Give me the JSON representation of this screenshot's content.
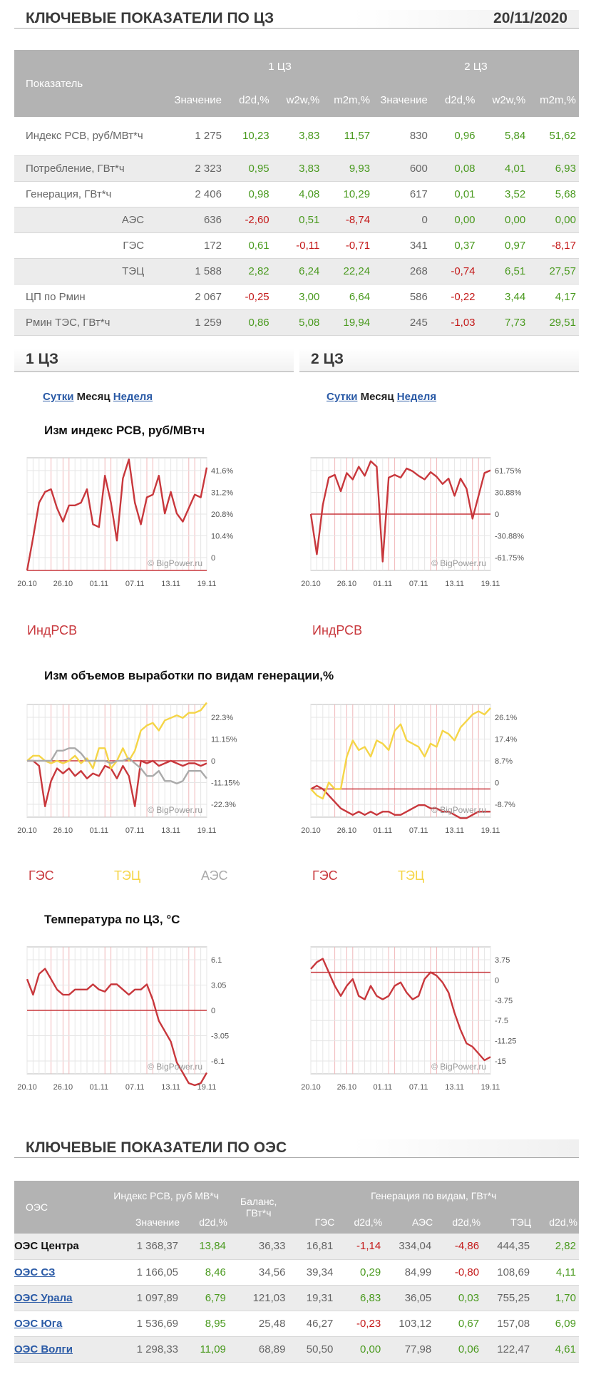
{
  "header": {
    "title": "КЛЮЧЕВЫЕ ПОКАЗАТЕЛИ ПО ЦЗ",
    "date": "20/11/2020"
  },
  "kpi": {
    "col_indicator": "Показатель",
    "group1": "1 ЦЗ",
    "group2": "2 ЦЗ",
    "sub": [
      "Значение",
      "d2d,%",
      "w2w,%",
      "m2m,%",
      "Значение",
      "d2d,%",
      "w2w,%",
      "m2m,%"
    ],
    "rows": [
      {
        "label": "Индекс РСВ, руб/МВт*ч",
        "sub": false,
        "v": [
          "1 275",
          "10,23",
          "3,83",
          "11,57",
          "830",
          "0,96",
          "5,84",
          "51,62"
        ]
      },
      {
        "label": "Потребление, ГВт*ч",
        "sub": false,
        "v": [
          "2 323",
          "0,95",
          "3,83",
          "9,93",
          "600",
          "0,08",
          "4,01",
          "6,93"
        ]
      },
      {
        "label": "Генерация, ГВт*ч",
        "sub": false,
        "v": [
          "2 406",
          "0,98",
          "4,08",
          "10,29",
          "617",
          "0,01",
          "3,52",
          "5,68"
        ]
      },
      {
        "label": "АЭС",
        "sub": true,
        "v": [
          "636",
          "-2,60",
          "0,51",
          "-8,74",
          "0",
          "0,00",
          "0,00",
          "0,00"
        ]
      },
      {
        "label": "ГЭС",
        "sub": true,
        "v": [
          "172",
          "0,61",
          "-0,11",
          "-0,71",
          "341",
          "0,37",
          "0,97",
          "-8,17"
        ]
      },
      {
        "label": "ТЭЦ",
        "sub": true,
        "v": [
          "1 588",
          "2,82",
          "6,24",
          "22,24",
          "268",
          "-0,74",
          "6,51",
          "27,57"
        ]
      },
      {
        "label": "ЦП по Рмин",
        "sub": false,
        "v": [
          "2 067",
          "-0,25",
          "3,00",
          "6,64",
          "586",
          "-0,22",
          "3,44",
          "4,17"
        ]
      },
      {
        "label": "Рмин ТЭС, ГВт*ч",
        "sub": false,
        "v": [
          "1 259",
          "0,86",
          "5,08",
          "19,94",
          "245",
          "-1,03",
          "7,73",
          "29,51"
        ]
      }
    ]
  },
  "zones": {
    "z1": {
      "title": "1 ЦЗ"
    },
    "z2": {
      "title": "2 ЦЗ"
    },
    "periods": {
      "day": "Сутки",
      "month": "Месяц",
      "week": "Неделя"
    }
  },
  "chart_titles": {
    "rsv": "Изм индекс РСВ, руб/МВтч",
    "gen": "Изм объемов выработки по видам генерации,%",
    "temp": "Температура по ЦЗ, °C"
  },
  "watermark": "© BigPower.ru",
  "x_ticks": [
    "20.10",
    "26.10",
    "01.11",
    "07.11",
    "13.11",
    "19.11"
  ],
  "legend": {
    "rsv": "ИндРСВ",
    "ges": "ГЭС",
    "tec": "ТЭЦ",
    "aes": "АЭС"
  },
  "colors": {
    "red": "#c8373c",
    "yellow": "#f5d547",
    "gray": "#aaaaaa",
    "grid": "#e6e6e6",
    "pos": "#4a9a1f",
    "neg": "#c41a1a",
    "header_bg": "#b3b3b3",
    "link": "#2a5aa6"
  },
  "chart_data": [
    {
      "type": "line",
      "title": "Изм индекс РСВ, руб/МВтч",
      "zone": "1 ЦЗ",
      "yticks": [
        "41.6%",
        "31.2%",
        "20.8%",
        "10.4%",
        "0"
      ],
      "ylim": [
        0,
        41.6
      ],
      "series": [
        {
          "name": "ИндРСВ",
          "color": "#c8373c",
          "values": [
            0,
            12,
            25,
            29,
            30,
            23,
            18,
            24,
            24,
            25,
            30,
            17,
            16,
            35,
            25,
            11,
            34,
            41,
            25,
            17,
            27,
            28,
            35,
            21,
            29,
            21,
            18,
            23,
            28,
            27,
            38
          ]
        }
      ]
    },
    {
      "type": "line",
      "title": "Изм индекс РСВ, руб/МВтч",
      "zone": "2 ЦЗ",
      "yticks": [
        "61.75%",
        "30.88%",
        "0",
        "-30.88%",
        "-61.75%"
      ],
      "ylim": [
        -61.75,
        61.75
      ],
      "series": [
        {
          "name": "ИндРСВ",
          "color": "#c8373c",
          "values": [
            0,
            -44,
            10,
            40,
            43,
            25,
            45,
            38,
            52,
            42,
            58,
            52,
            -52,
            40,
            43,
            40,
            50,
            47,
            42,
            38,
            46,
            41,
            33,
            39,
            20,
            39,
            28,
            -5,
            20,
            45,
            48
          ]
        }
      ]
    },
    {
      "type": "line",
      "title": "Изм объемов выработки по видам генерации,%",
      "zone": "1 ЦЗ",
      "yticks": [
        "22.3%",
        "11.15%",
        "0",
        "-11.15%",
        "-22.3%"
      ],
      "ylim": [
        -22.3,
        22.3
      ],
      "series": [
        {
          "name": "ГЭС",
          "color": "#c8373c",
          "values": [
            0,
            0,
            -2,
            -18,
            -8,
            -3,
            -5,
            -3,
            -6,
            -4,
            -7,
            -5,
            -6,
            -2,
            -3,
            -7,
            -2,
            -6,
            -18,
            0,
            -1,
            0,
            -2,
            -1,
            0,
            -1,
            -2,
            -1,
            -1,
            -2,
            -1
          ]
        },
        {
          "name": "ТЭЦ",
          "color": "#f5d547",
          "values": [
            0,
            2,
            2,
            0,
            -1,
            0,
            -1,
            0,
            2,
            -1,
            1,
            -3,
            5,
            5,
            -3,
            0,
            5,
            0,
            4,
            12,
            14,
            15,
            12,
            16,
            17,
            18,
            17,
            19,
            19,
            20,
            23
          ]
        },
        {
          "name": "АЭС",
          "color": "#aaaaaa",
          "values": [
            0,
            0,
            0,
            0,
            0,
            4,
            4,
            5,
            5,
            3,
            0,
            0,
            0,
            0,
            -1,
            0,
            0,
            1,
            -1,
            -3,
            -6,
            -6,
            -4,
            -8,
            -8,
            -9,
            -8,
            -4,
            -4,
            -4,
            -7
          ]
        }
      ]
    },
    {
      "type": "line",
      "title": "Изм объемов выработки по видам генерации,%",
      "zone": "2 ЦЗ",
      "yticks": [
        "26.1%",
        "17.4%",
        "8.7%",
        "0",
        "-8.7%"
      ],
      "ylim": [
        -8.7,
        26.1
      ],
      "series": [
        {
          "name": "ГЭС",
          "color": "#c8373c",
          "values": [
            0,
            1,
            0,
            -2,
            -4,
            -6,
            -7,
            -8,
            -7,
            -8,
            -7,
            -8,
            -7,
            -7,
            -8,
            -8,
            -7,
            -6,
            -5,
            -5,
            -6,
            -6,
            -7,
            -7,
            -8,
            -9,
            -9,
            -8,
            -7,
            -7,
            -7
          ]
        },
        {
          "name": "ТЭЦ",
          "color": "#f5d547",
          "values": [
            0,
            -2,
            -3,
            2,
            0,
            0,
            10,
            15,
            12,
            13,
            10,
            15,
            14,
            12,
            18,
            20,
            15,
            14,
            13,
            10,
            14,
            13,
            18,
            17,
            15,
            19,
            21,
            23,
            24,
            23,
            25
          ]
        }
      ]
    },
    {
      "type": "line",
      "title": "Температура по ЦЗ, °C",
      "zone": "1 ЦЗ",
      "yticks": [
        "6.1",
        "3.05",
        "0",
        "-3.05",
        "-6.1"
      ],
      "ylim": [
        -6.1,
        6.1
      ],
      "series": [
        {
          "name": "",
          "color": "#c8373c",
          "values": [
            3,
            1.5,
            3.5,
            4,
            3,
            2,
            1.5,
            1.5,
            2,
            2,
            2,
            2.5,
            2,
            1.8,
            2.5,
            2.5,
            2,
            1.5,
            2,
            2,
            2.5,
            1,
            -1,
            -2,
            -3,
            -5,
            -6,
            -7,
            -7.2,
            -7,
            -6
          ]
        }
      ]
    },
    {
      "type": "line",
      "title": "Температура по ЦЗ, °C",
      "zone": "2 ЦЗ",
      "yticks": [
        "3.75",
        "0",
        "-3.75",
        "-7.5",
        "-11.25",
        "-15"
      ],
      "ylim": [
        -15,
        3.75
      ],
      "series": [
        {
          "name": "",
          "color": "#c8373c",
          "values": [
            0.5,
            1.5,
            2,
            0,
            -2,
            -3.5,
            -2,
            -1,
            -3.5,
            -4,
            -2,
            -3.5,
            -4,
            -3.5,
            -2,
            -1.5,
            -3,
            -4,
            -3.5,
            -1,
            0,
            -0.5,
            -1.5,
            -3,
            -6,
            -8.5,
            -10.5,
            -11,
            -12,
            -13,
            -12.5
          ]
        }
      ]
    }
  ],
  "oes": {
    "h_oes": "ОЭС",
    "h_index": "Индекс РСВ, руб МВ*ч",
    "h_balance": "Баланс, ГВт*ч",
    "h_gen": "Генерация по видам, ГВт*ч",
    "sub": [
      "Значение",
      "d2d,%",
      "ГЭС",
      "d2d,%",
      "АЭС",
      "d2d,%",
      "ТЭЦ",
      "d2d,%"
    ],
    "title": "КЛЮЧЕВЫЕ ПОКАЗАТЕЛИ ПО ОЭС",
    "rows": [
      {
        "name": "ОЭС Центра",
        "link": false,
        "v": [
          "1 368,37",
          "13,84",
          "36,33",
          "16,81",
          "-1,14",
          "334,04",
          "-4,86",
          "444,35",
          "2,82"
        ]
      },
      {
        "name": "ОЭС СЗ",
        "link": true,
        "v": [
          "1 166,05",
          "8,46",
          "34,56",
          "39,34",
          "0,29",
          "84,99",
          "-0,80",
          "108,69",
          "4,11"
        ]
      },
      {
        "name": "ОЭС Урала",
        "link": true,
        "v": [
          "1 097,89",
          "6,79",
          "121,03",
          "19,31",
          "6,83",
          "36,05",
          "0,03",
          "755,25",
          "1,70"
        ]
      },
      {
        "name": "ОЭС Юга",
        "link": true,
        "v": [
          "1 536,69",
          "8,95",
          "25,48",
          "46,27",
          "-0,23",
          "103,12",
          "0,67",
          "157,08",
          "6,09"
        ]
      },
      {
        "name": "ОЭС Волги",
        "link": true,
        "v": [
          "1 298,33",
          "11,09",
          "68,89",
          "50,50",
          "0,00",
          "77,98",
          "0,06",
          "122,47",
          "4,61"
        ]
      }
    ]
  }
}
